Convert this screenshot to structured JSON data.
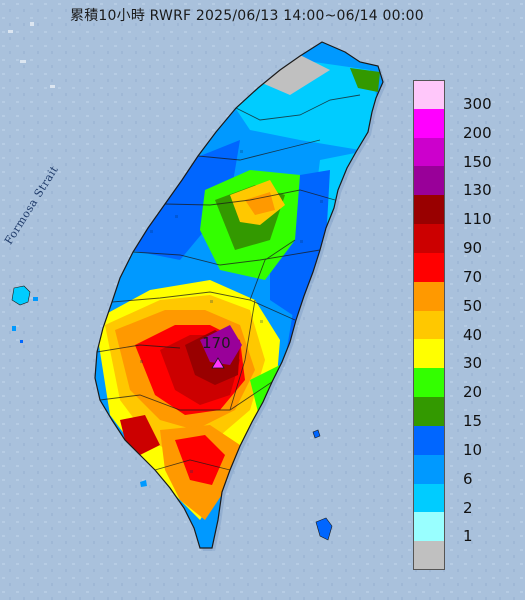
{
  "title": "累積10小時 RWRF 2025/06/13 14:00~06/14 00:00",
  "strait_label": "Formosa Strait",
  "max_marker": {
    "value_label": "170",
    "symbol": "magenta-triangle"
  },
  "legend": {
    "entries": [
      {
        "label": "300",
        "color": "#ffc7fa"
      },
      {
        "label": "200",
        "color": "#ff00ff"
      },
      {
        "label": "150",
        "color": "#cc00cc"
      },
      {
        "label": "130",
        "color": "#990099"
      },
      {
        "label": "110",
        "color": "#990000"
      },
      {
        "label": "90",
        "color": "#cc0000"
      },
      {
        "label": "70",
        "color": "#ff0000"
      },
      {
        "label": "50",
        "color": "#ff9900"
      },
      {
        "label": "40",
        "color": "#ffc800"
      },
      {
        "label": "30",
        "color": "#ffff00"
      },
      {
        "label": "20",
        "color": "#33ff00"
      },
      {
        "label": "15",
        "color": "#339900"
      },
      {
        "label": "10",
        "color": "#0066ff"
      },
      {
        "label": "6",
        "color": "#0099ff"
      },
      {
        "label": "2",
        "color": "#00ccff"
      },
      {
        "label": "1",
        "color": "#99ffff"
      },
      {
        "label": "",
        "color": "#c0c0c0"
      }
    ]
  },
  "colors": {
    "sea": "#a9c1dc",
    "land_outline": "#1a1a1a"
  }
}
